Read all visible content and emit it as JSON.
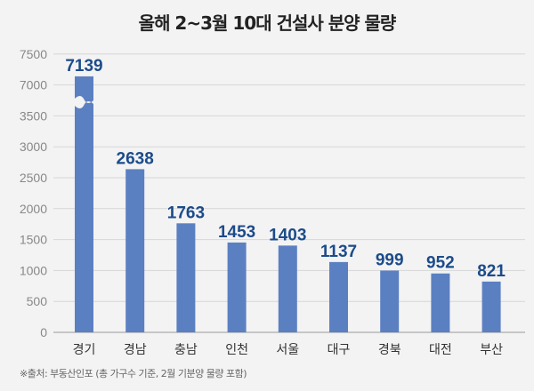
{
  "chart_data": {
    "type": "bar",
    "title": "올해 2~3월 10대 건설사 분양 물량",
    "categories": [
      "경기",
      "경남",
      "충남",
      "인천",
      "서울",
      "대구",
      "경북",
      "대전",
      "부산"
    ],
    "values": [
      7139,
      2638,
      1763,
      1453,
      1403,
      1137,
      999,
      952,
      821
    ],
    "yticks": [
      "0",
      "500",
      "1000",
      "1500",
      "2000",
      "2500",
      "3000",
      "3500",
      "7000",
      "7500"
    ],
    "ylim": [
      0,
      7500
    ],
    "axis_break": [
      3500,
      7000
    ],
    "grid": true,
    "legend": "none",
    "bar_color": "#5b80c2",
    "label_color": "#1c4b8a",
    "source": "※출처: 부동산인포 (총 가구수 기준, 2월 기분양 물량 포함)"
  }
}
